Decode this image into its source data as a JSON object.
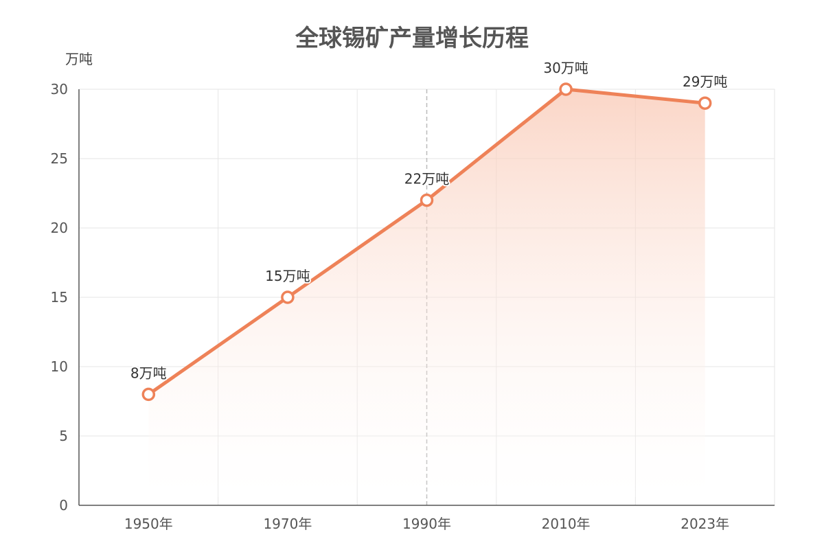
{
  "chart_data": {
    "type": "area",
    "title": "全球锡矿产量增长历程",
    "xlabel": "",
    "ylabel": "万吨",
    "categories": [
      "1950年",
      "1970年",
      "1990年",
      "2010年",
      "2023年"
    ],
    "values": [
      8,
      15,
      22,
      30,
      29
    ],
    "data_labels": [
      "8万吨",
      "15万吨",
      "22万吨",
      "30万吨",
      "29万吨"
    ],
    "ylim": [
      0,
      30
    ],
    "yticks": [
      0,
      5,
      10,
      15,
      20,
      25,
      30
    ],
    "grid": true,
    "highlight_category": "1990年",
    "colors": {
      "line": "#ee8258",
      "marker_fill": "#ffffff",
      "area_top": "#f9c8b4",
      "area_bottom": "#ffffff",
      "grid": "#e6e6e6",
      "axis": "#555555",
      "highlight_line": "#bbbbbb"
    }
  }
}
